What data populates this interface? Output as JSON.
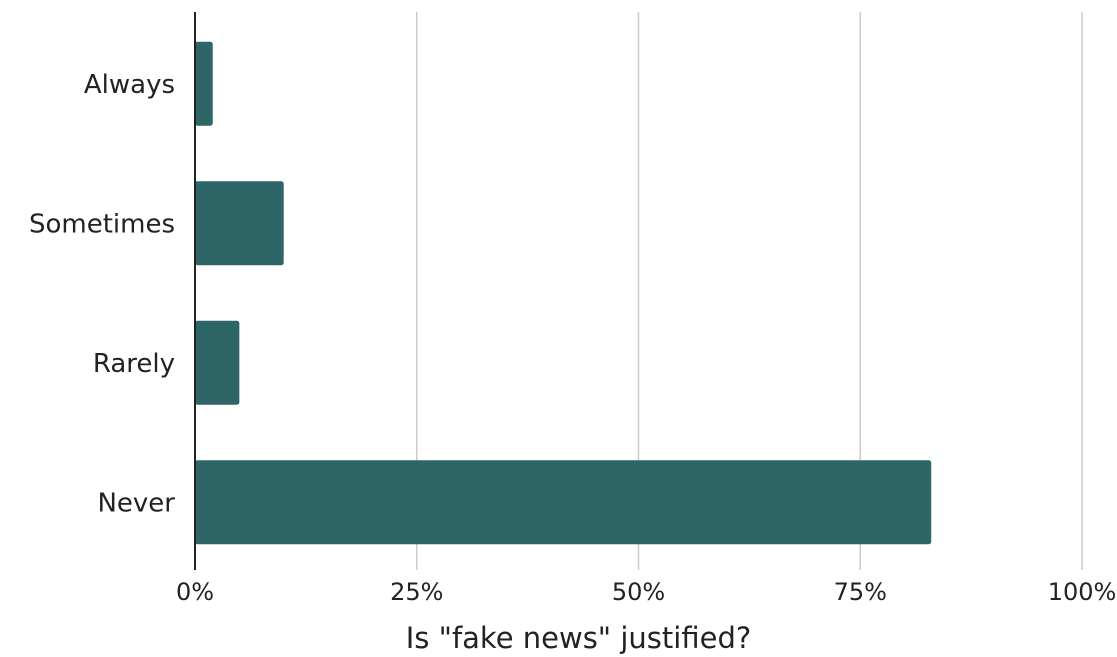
{
  "chart_data": {
    "type": "bar",
    "orientation": "horizontal",
    "categories": [
      "Always",
      "Sometimes",
      "Rarely",
      "Never"
    ],
    "values": [
      2,
      10,
      5,
      83
    ],
    "value_unit": "%",
    "xlabel": "Is \"fake news\" justified?",
    "xlim": [
      0,
      100
    ],
    "xticks": [
      0,
      25,
      50,
      75,
      100
    ],
    "xtick_labels": [
      "0%",
      "25%",
      "50%",
      "75%",
      "100%"
    ],
    "grid": "vertical",
    "bar_color": "#2e6566"
  }
}
